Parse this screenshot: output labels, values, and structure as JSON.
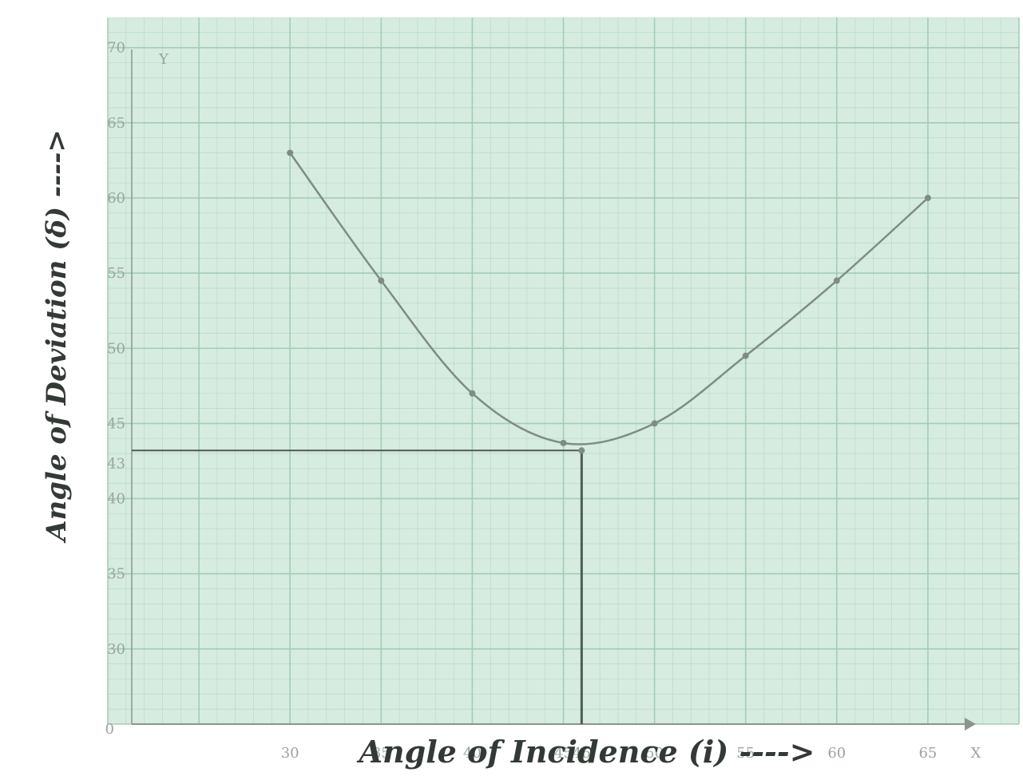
{
  "chart_data": {
    "type": "line",
    "xlabel": "Angle of Incidence (i) ---->",
    "ylabel": "Angle of Deviation (δ) ---->",
    "origin_label": "0",
    "x_axis_end_label": "X",
    "y_axis_end_label": "Y",
    "x_ticks": [
      "30",
      "35",
      "40",
      "45",
      "50",
      "55",
      "60",
      "65"
    ],
    "y_ticks": [
      "30",
      "35",
      "40",
      "45",
      "50",
      "55",
      "60",
      "65",
      "70"
    ],
    "xlim": [
      20,
      70
    ],
    "ylim": [
      25,
      72
    ],
    "x_axis_crossing": 25,
    "grid": true,
    "colors": {
      "paper": "#d6ece0",
      "grid": "#9fcab1",
      "curve": "#7f8c85",
      "axis": "#8a958e",
      "text": "#333a36"
    },
    "series": [
      {
        "values": [
          {
            "x": 30,
            "y": 63
          },
          {
            "x": 35,
            "y": 54.5
          },
          {
            "x": 40,
            "y": 47
          },
          {
            "x": 45,
            "y": 43.7
          },
          {
            "x": 50,
            "y": 45
          },
          {
            "x": 55,
            "y": 49.5
          },
          {
            "x": 60,
            "y": 54.5
          },
          {
            "x": 65,
            "y": 60
          }
        ]
      }
    ],
    "min_deviation_marker": {
      "x": 46,
      "y": 43.2,
      "x_label": "46",
      "y_label": "43"
    }
  }
}
